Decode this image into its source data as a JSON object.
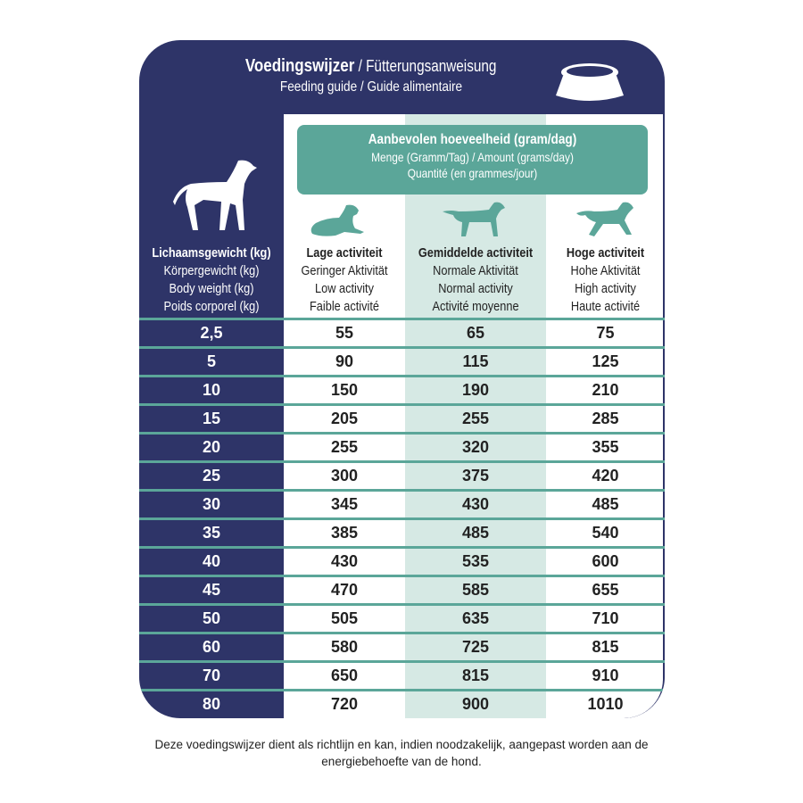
{
  "header": {
    "title_bold": "Voedingswijzer",
    "title_rest": " / Fütterungsanweisung",
    "subtitle": "Feeding guide / Guide alimentaire"
  },
  "amount_box": {
    "line1": "Aanbevolen hoeveelheid (gram/dag)",
    "line2": "Menge (Gramm/Tag) / Amount (grams/day)",
    "line3": "Quantité (en grammes/jour)"
  },
  "columns": [
    {
      "bold": "Lichaamsgewicht (kg)",
      "l2": "Körpergewicht (kg)",
      "l3": "Body weight (kg)",
      "l4": "Poids corporel (kg)"
    },
    {
      "bold": "Lage activiteit",
      "l2": "Geringer Aktivität",
      "l3": "Low activity",
      "l4": "Faible activité"
    },
    {
      "bold": "Gemiddelde activiteit",
      "l2": "Normale Aktivität",
      "l3": "Normal activity",
      "l4": "Activité moyenne"
    },
    {
      "bold": "Hoge activiteit",
      "l2": "Hohe Aktivität",
      "l3": "High activity",
      "l4": "Haute activité"
    }
  ],
  "rows": [
    [
      "2,5",
      "55",
      "65",
      "75"
    ],
    [
      "5",
      "90",
      "115",
      "125"
    ],
    [
      "10",
      "150",
      "190",
      "210"
    ],
    [
      "15",
      "205",
      "255",
      "285"
    ],
    [
      "20",
      "255",
      "320",
      "355"
    ],
    [
      "25",
      "300",
      "375",
      "420"
    ],
    [
      "30",
      "345",
      "430",
      "485"
    ],
    [
      "35",
      "385",
      "485",
      "540"
    ],
    [
      "40",
      "430",
      "535",
      "600"
    ],
    [
      "45",
      "470",
      "585",
      "655"
    ],
    [
      "50",
      "505",
      "635",
      "710"
    ],
    [
      "60",
      "580",
      "725",
      "815"
    ],
    [
      "70",
      "650",
      "815",
      "910"
    ],
    [
      "80",
      "720",
      "900",
      "1010"
    ]
  ],
  "footnote": "Deze voedingswijzer dient als richtlijn en kan, indien noodzakelijk, aangepast worden aan de energiebehoefte van de hond.",
  "colors": {
    "navy": "#2e3468",
    "teal": "#5ba699",
    "mint": "#d6e9e4"
  }
}
